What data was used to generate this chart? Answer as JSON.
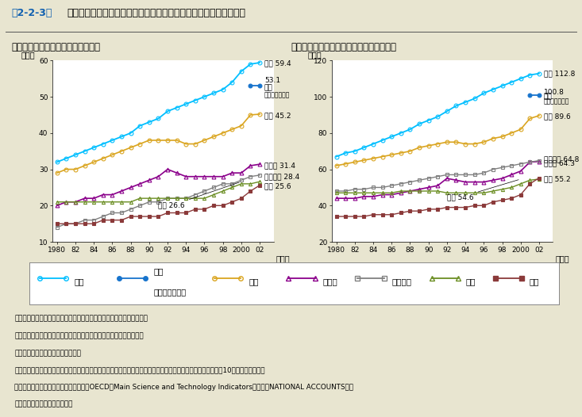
{
  "title_prefix": "第2-2-3図",
  "title_main": "主要国における人口及び労働力人口１万人当たりの研究者数の推移",
  "subtitle1": "（１）人口１万人当たりの研究者数",
  "subtitle2": "（２）労働力人口１万人当たりの研究者数",
  "years": [
    1980,
    1981,
    1982,
    1983,
    1984,
    1985,
    1986,
    1987,
    1988,
    1989,
    1990,
    1991,
    1992,
    1993,
    1994,
    1995,
    1996,
    1997,
    1998,
    1999,
    2000,
    2001,
    2002
  ],
  "chart1": {
    "ylim": [
      10,
      60
    ],
    "yticks": [
      10,
      20,
      30,
      40,
      50,
      60
    ],
    "japan_pop": [
      32,
      33,
      34,
      35,
      36,
      37,
      38,
      39,
      40,
      42,
      43,
      44,
      46,
      47,
      48,
      49,
      50,
      51,
      52,
      54,
      57,
      59,
      59.4
    ],
    "japan_fte": [
      null,
      null,
      null,
      null,
      null,
      null,
      null,
      null,
      null,
      null,
      null,
      null,
      null,
      null,
      null,
      null,
      null,
      null,
      null,
      null,
      null,
      53.1,
      53.1
    ],
    "usa": [
      29,
      30,
      30,
      31,
      32,
      33,
      34,
      35,
      36,
      37,
      38,
      38,
      38,
      38,
      37,
      37,
      38,
      39,
      40,
      41,
      42,
      45,
      45.2
    ],
    "germany": [
      20,
      21,
      21,
      22,
      22,
      23,
      23,
      24,
      25,
      26,
      27,
      28,
      30,
      29,
      28,
      28,
      28,
      28,
      28,
      29,
      29,
      31,
      31.4
    ],
    "france": [
      14,
      15,
      15,
      16,
      16,
      17,
      18,
      18,
      19,
      20,
      21,
      21,
      22,
      22,
      22,
      23,
      24,
      25,
      26,
      26,
      27,
      28,
      28.4
    ],
    "uk": [
      21,
      21,
      21,
      21,
      21,
      21,
      21,
      21,
      21,
      22,
      22,
      22,
      22,
      22,
      22,
      22,
      22,
      23,
      24,
      25,
      26,
      26,
      26.6
    ],
    "eu": [
      15,
      15,
      15,
      15,
      15,
      16,
      16,
      16,
      17,
      17,
      17,
      17,
      18,
      18,
      18,
      19,
      19,
      20,
      20,
      21,
      22,
      24,
      25.6
    ]
  },
  "chart2": {
    "ylim": [
      20,
      120
    ],
    "yticks": [
      20,
      40,
      60,
      80,
      100,
      120
    ],
    "japan_pop": [
      67,
      69,
      70,
      72,
      74,
      76,
      78,
      80,
      82,
      85,
      87,
      89,
      92,
      95,
      97,
      99,
      102,
      104,
      106,
      108,
      110,
      112,
      112.8
    ],
    "japan_fte": [
      null,
      null,
      null,
      null,
      null,
      null,
      null,
      null,
      null,
      null,
      null,
      null,
      null,
      null,
      null,
      null,
      null,
      null,
      null,
      null,
      null,
      100.8,
      100.8
    ],
    "usa": [
      62,
      63,
      64,
      65,
      66,
      67,
      68,
      69,
      70,
      72,
      73,
      74,
      75,
      75,
      74,
      74,
      75,
      77,
      78,
      80,
      82,
      88,
      89.6
    ],
    "germany": [
      44,
      44,
      44,
      45,
      45,
      46,
      46,
      47,
      48,
      49,
      50,
      51,
      55,
      54,
      53,
      53,
      53,
      54,
      55,
      57,
      59,
      64,
      64.3
    ],
    "france": [
      48,
      48,
      49,
      49,
      50,
      50,
      51,
      52,
      53,
      54,
      55,
      56,
      57,
      57,
      57,
      57,
      58,
      60,
      61,
      62,
      63,
      64,
      64.8
    ],
    "uk": [
      47,
      47,
      47,
      47,
      47,
      47,
      47,
      48,
      48,
      48,
      48,
      48,
      47,
      47,
      47,
      47,
      47,
      48,
      49,
      50,
      52,
      54,
      54.6
    ],
    "eu": [
      34,
      34,
      34,
      34,
      35,
      35,
      35,
      36,
      37,
      37,
      38,
      38,
      39,
      39,
      39,
      40,
      40,
      42,
      43,
      44,
      46,
      52,
      55.2
    ]
  },
  "colors": {
    "japan_pop": "#00BFFF",
    "japan_fte": "#1874CD",
    "usa": "#DAA520",
    "germany": "#8B008B",
    "france": "#808080",
    "uk": "#6B8E23",
    "eu": "#8B3A3A"
  },
  "bg_color": "#E8E5D0",
  "plot_bg": "#FFFFFF",
  "notes": [
    "注）１．国際比較を行うため、各国とも人文・社会科学を含めている。",
    "　　２．日本の労働力人口及び研究者数は各年度とも４月１日現在。",
    "　　３．ＥＵはＯＥＣＤの推計値。",
    "資料：研究者数は第２－２－２図に同じ。人口及び労働力人口は、日本は総務省統計局「人口推計資料」（各年10月１日現在）及び",
    "　　「労働力調査報告」、その他の国はOECD「Main Science and Technology Indicators」及び「NATIONAL ACCOUNTS」。",
    "（参照：付属資料３．（１））"
  ]
}
